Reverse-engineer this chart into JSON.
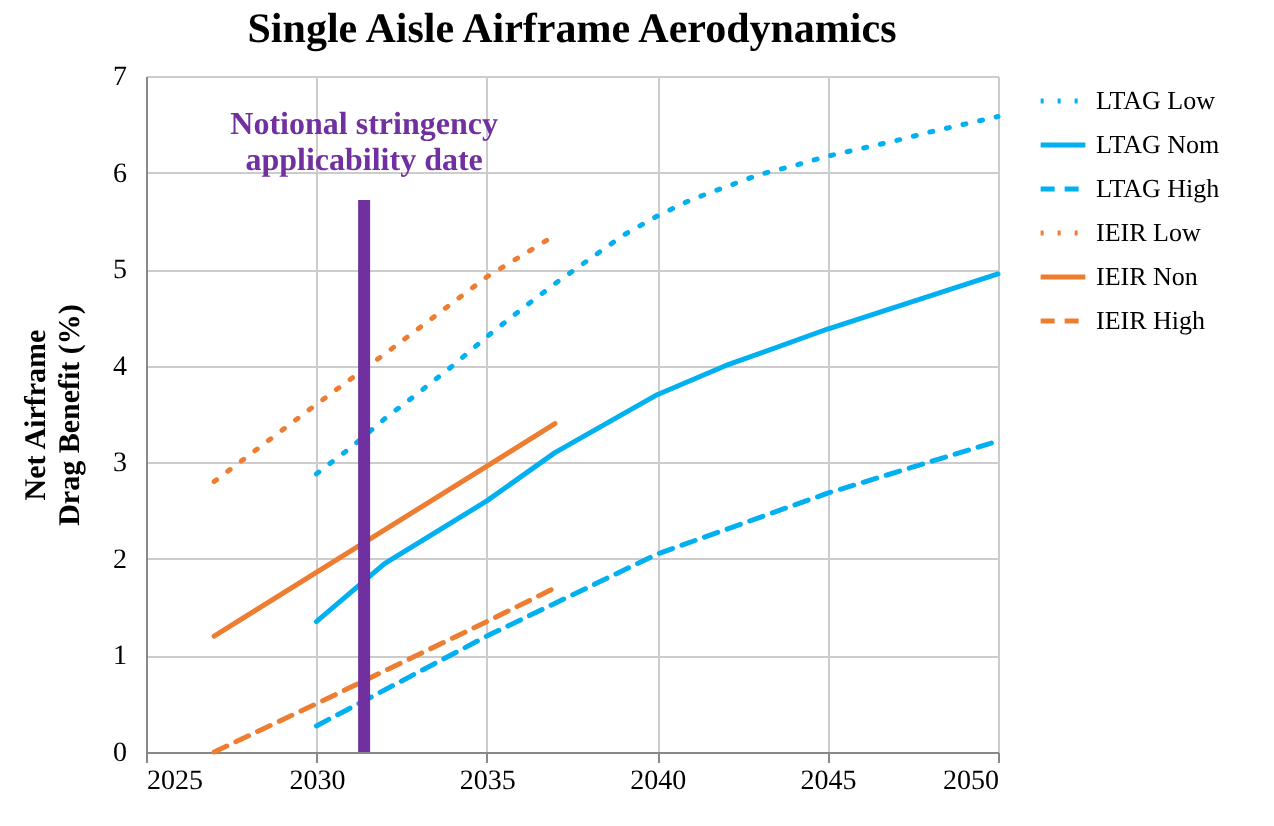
{
  "chart_data": {
    "type": "line",
    "title": "Single Aisle Airframe Aerodynamics",
    "ylabel": "Net Airframe\nDrag Benefit (%)",
    "xlim": [
      2025,
      2050
    ],
    "xticks": [
      2025,
      2030,
      2035,
      2040,
      2045,
      2050
    ],
    "ylim": [
      0,
      7
    ],
    "yticks": [
      0,
      1,
      2,
      3,
      4,
      5,
      6,
      7
    ],
    "grid": true,
    "legend": "right",
    "series": [
      {
        "name": "LTAG Low",
        "color": "#00b0f0",
        "line_style": "dotted",
        "x": [
          2030,
          2031,
          2032,
          2033,
          2034,
          2035,
          2036,
          2037,
          2038,
          2039,
          2040,
          2041,
          2042,
          2043,
          2044,
          2045,
          2046,
          2047,
          2048,
          2049,
          2050
        ],
        "values": [
          2.88,
          3.15,
          3.45,
          3.72,
          4.0,
          4.3,
          4.58,
          4.85,
          5.1,
          5.35,
          5.55,
          5.72,
          5.85,
          5.98,
          6.07,
          6.17,
          6.25,
          6.33,
          6.42,
          6.5,
          6.58
        ]
      },
      {
        "name": "LTAG Nom",
        "color": "#00b0f0",
        "line_style": "solid",
        "x": [
          2030,
          2032,
          2035,
          2037,
          2040,
          2042,
          2045,
          2050
        ],
        "values": [
          1.35,
          1.95,
          2.6,
          3.1,
          3.7,
          4.0,
          4.38,
          4.95
        ]
      },
      {
        "name": "LTAG High",
        "color": "#00b0f0",
        "line_style": "dashed",
        "x": [
          2030,
          2035,
          2040,
          2045,
          2050
        ],
        "values": [
          0.27,
          1.2,
          2.05,
          2.68,
          3.22
        ]
      },
      {
        "name": "IEIR Low",
        "color": "#ed7d31",
        "line_style": "dotted",
        "x": [
          2027,
          2030,
          2032,
          2035,
          2037
        ],
        "values": [
          2.8,
          3.6,
          4.12,
          4.92,
          5.35
        ]
      },
      {
        "name": "IEIR Non",
        "color": "#ed7d31",
        "line_style": "solid",
        "x": [
          2027,
          2037
        ],
        "values": [
          1.2,
          3.4
        ]
      },
      {
        "name": "IEIR High",
        "color": "#ed7d31",
        "line_style": "dashed",
        "x": [
          2027,
          2030,
          2035,
          2037
        ],
        "values": [
          0,
          0.5,
          1.35,
          1.7
        ]
      }
    ],
    "ref_lines": [
      {
        "axis": "x",
        "value": 2031.4,
        "label": "Notional stringency\napplicability date",
        "color": "#7030a0"
      }
    ]
  }
}
